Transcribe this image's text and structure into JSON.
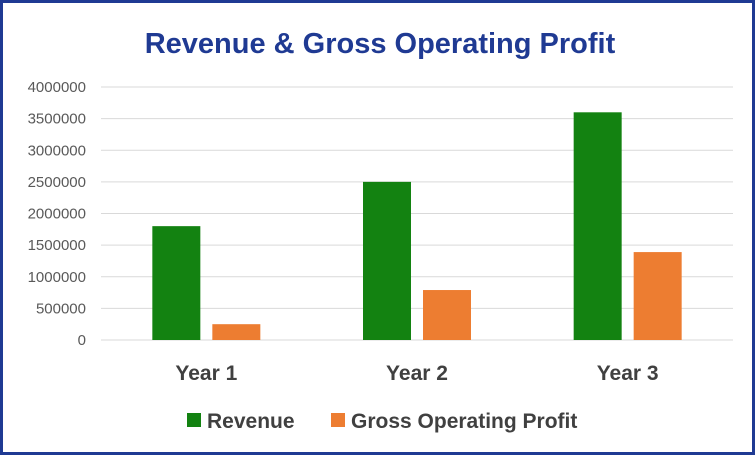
{
  "chart_data": {
    "type": "bar",
    "title": "Revenue & Gross Operating Profit",
    "categories": [
      "Year 1",
      "Year 2",
      "Year 3"
    ],
    "series": [
      {
        "name": "Revenue",
        "values": [
          1800000,
          2500000,
          3600000
        ],
        "color": "#138211"
      },
      {
        "name": "Gross Operating Profit",
        "values": [
          250000,
          790000,
          1390000
        ],
        "color": "#ed7d31"
      }
    ],
    "ylim": [
      0,
      4000000
    ],
    "yticks": [
      "0",
      "500000",
      "1000000",
      "1500000",
      "2000000",
      "2500000",
      "3000000",
      "3500000",
      "4000000"
    ],
    "grid": true,
    "legend": "bottom",
    "frame_color": "#1f3a93"
  }
}
